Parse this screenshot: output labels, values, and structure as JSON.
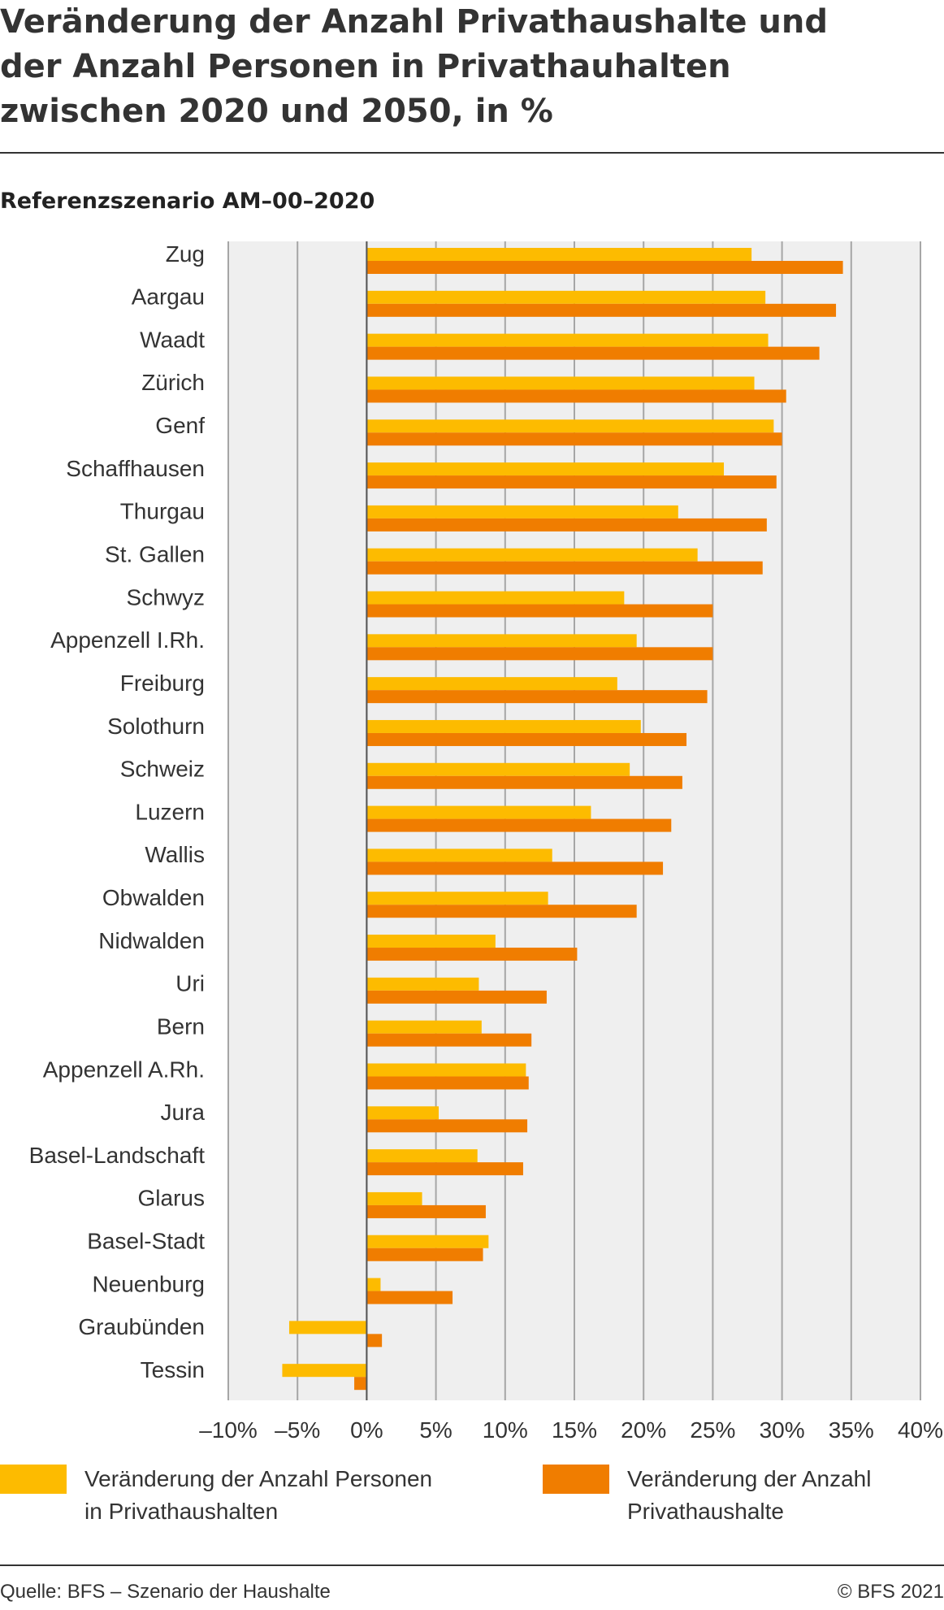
{
  "title_lines": [
    "Veränderung der Anzahl Privathaushalte und",
    "der Anzahl Personen in Privathauhalten",
    "zwischen 2020 und 2050, in %"
  ],
  "subtitle": "Referenzszenario AM–00–2020",
  "legend": {
    "item1": {
      "label_line1": "Veränderung der Anzahl Personen",
      "label_line2": "in Privathaushalten",
      "color": "#fdbb00"
    },
    "item2": {
      "label_line1": "Veränderung der Anzahl",
      "label_line2": "Privathaushalte",
      "color": "#f07d00"
    }
  },
  "source": "Quelle: BFS – Szenario der Haushalte",
  "copyright": "© BFS 2021",
  "colors": {
    "persons": "#fdbb00",
    "households": "#f07d00",
    "plot_bg": "#efefef",
    "grid": "#a6a6a6"
  },
  "chart_data": {
    "type": "bar",
    "orientation": "horizontal",
    "categories": [
      "Zug",
      "Aargau",
      "Waadt",
      "Zürich",
      "Genf",
      "Schaffhausen",
      "Thurgau",
      "St. Gallen",
      "Schwyz",
      "Appenzell I.Rh.",
      "Freiburg",
      "Solothurn",
      "Schweiz",
      "Luzern",
      "Wallis",
      "Obwalden",
      "Nidwalden",
      "Uri",
      "Bern",
      "Appenzell A.Rh.",
      "Jura",
      "Basel-Landschaft",
      "Glarus",
      "Basel-Stadt",
      "Neuenburg",
      "Graubünden",
      "Tessin"
    ],
    "series": [
      {
        "name": "Veränderung der Anzahl Personen in Privathaushalten",
        "values": [
          27.8,
          28.8,
          29.0,
          28.0,
          29.4,
          25.8,
          22.5,
          23.9,
          18.6,
          19.5,
          18.1,
          19.8,
          19.0,
          16.2,
          13.4,
          13.1,
          9.3,
          8.1,
          8.3,
          11.5,
          5.2,
          8.0,
          4.0,
          8.8,
          1.0,
          -5.6,
          -6.1
        ]
      },
      {
        "name": "Veränderung der Anzahl Privathaushalte",
        "values": [
          34.4,
          33.9,
          32.7,
          30.3,
          30.0,
          29.6,
          28.9,
          28.6,
          25.0,
          25.0,
          24.6,
          23.1,
          22.8,
          22.0,
          21.4,
          19.5,
          15.2,
          13.0,
          11.9,
          11.7,
          11.6,
          11.3,
          8.6,
          8.4,
          6.2,
          1.1,
          -0.9
        ]
      }
    ],
    "xlim": [
      -10,
      40
    ],
    "xticks": [
      -10,
      -5,
      0,
      5,
      10,
      15,
      20,
      25,
      30,
      35,
      40
    ],
    "xtick_labels": [
      "–10%",
      "–5%",
      "0%",
      "5%",
      "10%",
      "15%",
      "20%",
      "25%",
      "30%",
      "35%",
      "40%"
    ],
    "grid": true,
    "legend_position": "bottom"
  }
}
